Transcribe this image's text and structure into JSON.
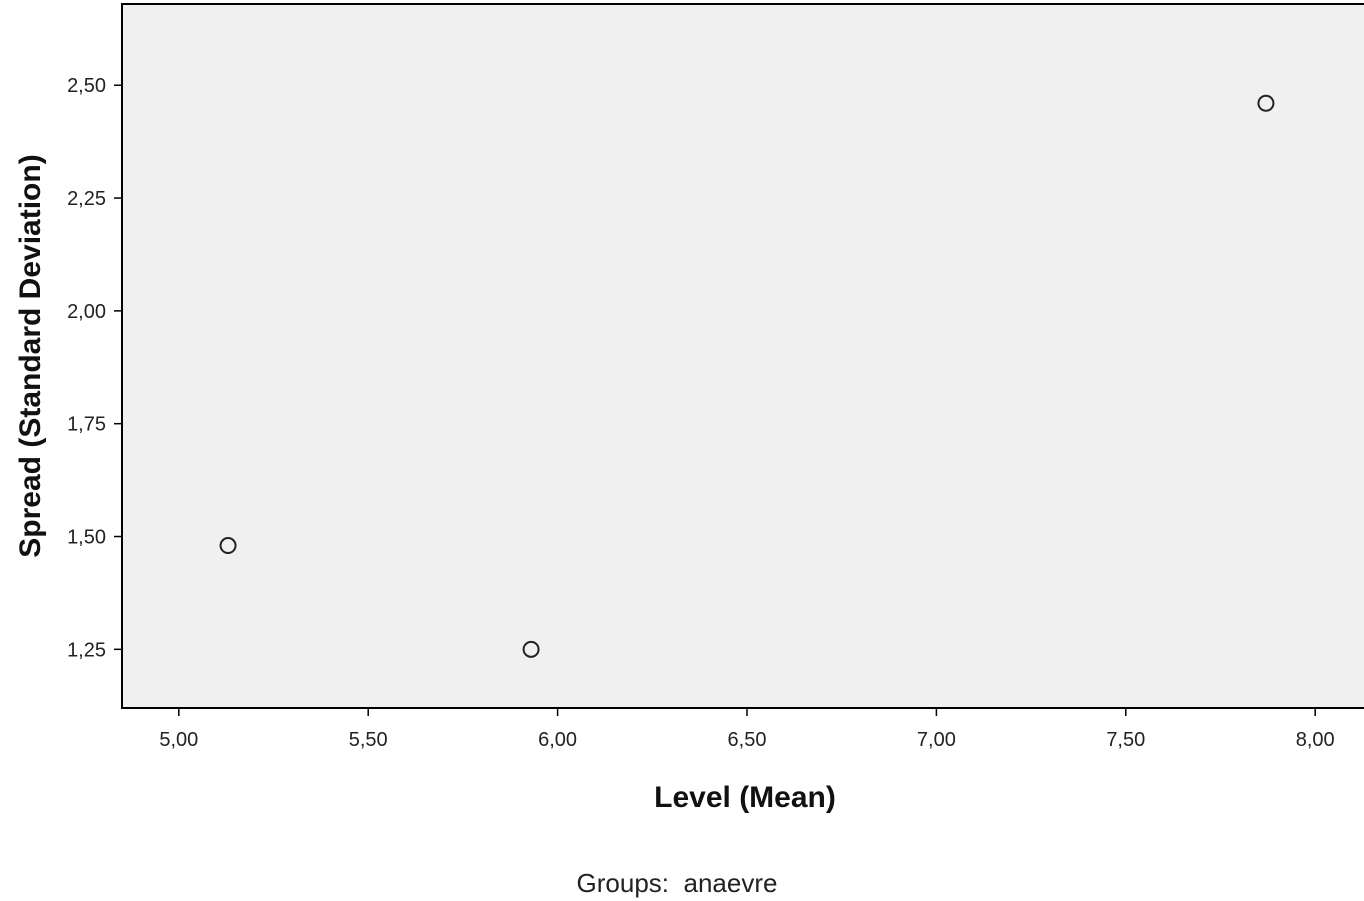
{
  "chart_data": {
    "type": "scatter",
    "xlabel": "Level (Mean)",
    "ylabel": "Spread (Standard Deviation)",
    "footnote": "Groups:  anaevre",
    "xlim": [
      4.85,
      8.15
    ],
    "ylim": [
      1.12,
      2.68
    ],
    "xticks": [
      {
        "value": 5.0,
        "label": "5,00"
      },
      {
        "value": 5.5,
        "label": "5,50"
      },
      {
        "value": 6.0,
        "label": "6,00"
      },
      {
        "value": 6.5,
        "label": "6,50"
      },
      {
        "value": 7.0,
        "label": "7,00"
      },
      {
        "value": 7.5,
        "label": "7,50"
      },
      {
        "value": 8.0,
        "label": "8,00"
      }
    ],
    "yticks": [
      {
        "value": 1.25,
        "label": "1,25"
      },
      {
        "value": 1.5,
        "label": "1,50"
      },
      {
        "value": 1.75,
        "label": "1,75"
      },
      {
        "value": 2.0,
        "label": "2,00"
      },
      {
        "value": 2.25,
        "label": "2,25"
      },
      {
        "value": 2.5,
        "label": "2,50"
      }
    ],
    "points": [
      {
        "x": 5.13,
        "y": 1.48
      },
      {
        "x": 5.93,
        "y": 1.25
      },
      {
        "x": 7.87,
        "y": 2.46
      }
    ],
    "grid": false,
    "marker": "open-circle",
    "colors": {
      "plot_background": "#f0f0f0",
      "axis": "#000000",
      "marker": "#222222"
    }
  }
}
